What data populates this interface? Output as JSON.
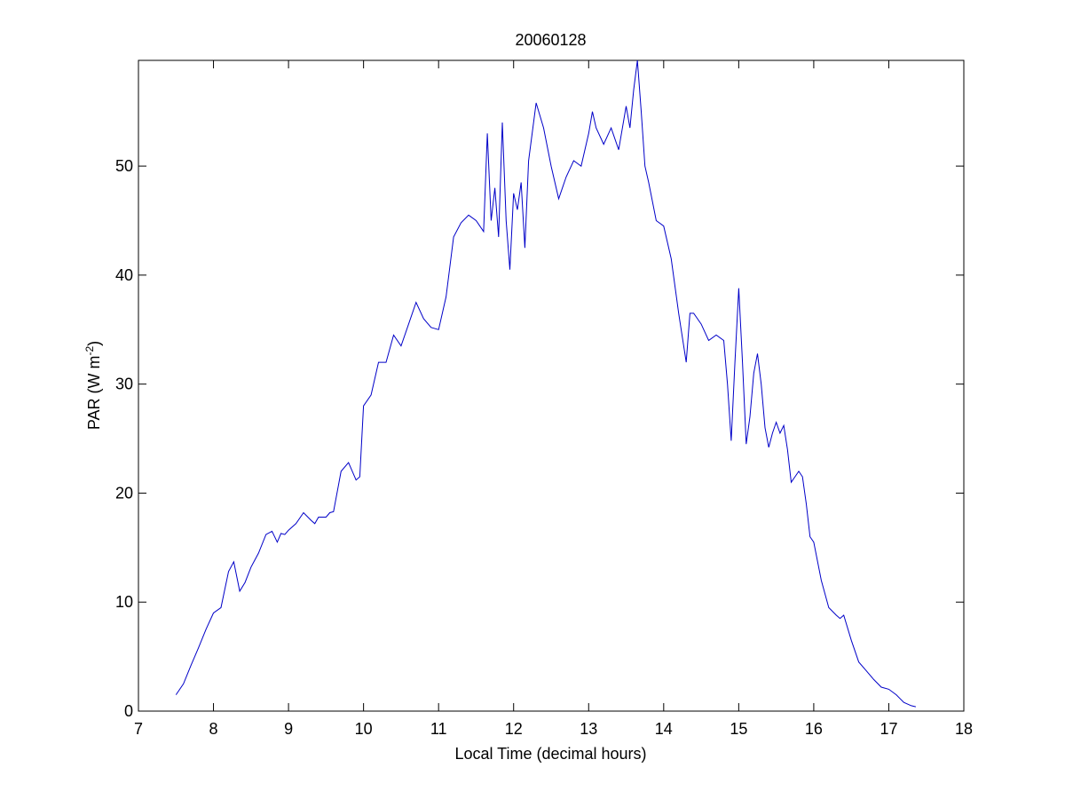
{
  "chart_data": {
    "type": "line",
    "title": "20060128",
    "xlabel": "Local Time (decimal hours)",
    "ylabel": "PAR (W m",
    "ylabel_sup": "-2",
    "ylabel_close": ")",
    "xlim": [
      7,
      18
    ],
    "ylim": [
      0,
      59.7
    ],
    "xticks": [
      7,
      8,
      9,
      10,
      11,
      12,
      13,
      14,
      15,
      16,
      17,
      18
    ],
    "yticks": [
      0,
      10,
      20,
      30,
      40,
      50
    ],
    "grid": false,
    "line_color": "#0000c8",
    "series": [
      {
        "x": [
          7.5,
          7.6,
          7.7,
          7.8,
          7.9,
          8.0,
          8.1,
          8.2,
          8.27,
          8.35,
          8.42,
          8.5,
          8.6,
          8.7,
          8.78,
          8.85,
          8.9,
          8.95,
          9.0,
          9.1,
          9.2,
          9.3,
          9.35,
          9.4,
          9.5,
          9.55,
          9.6,
          9.7,
          9.8,
          9.9,
          9.95,
          10.0,
          10.1,
          10.2,
          10.3,
          10.4,
          10.5,
          10.6,
          10.7,
          10.8,
          10.9,
          11.0,
          11.1,
          11.2,
          11.3,
          11.4,
          11.5,
          11.6,
          11.65,
          11.7,
          11.75,
          11.8,
          11.85,
          11.9,
          11.95,
          12.0,
          12.05,
          12.1,
          12.15,
          12.2,
          12.3,
          12.4,
          12.5,
          12.6,
          12.7,
          12.8,
          12.9,
          13.0,
          13.05,
          13.1,
          13.2,
          13.3,
          13.4,
          13.5,
          13.55,
          13.6,
          13.65,
          13.7,
          13.75,
          13.8,
          13.9,
          14.0,
          14.1,
          14.2,
          14.3,
          14.35,
          14.4,
          14.5,
          14.6,
          14.7,
          14.8,
          14.85,
          14.9,
          14.95,
          15.0,
          15.05,
          15.1,
          15.15,
          15.2,
          15.25,
          15.3,
          15.35,
          15.4,
          15.45,
          15.5,
          15.55,
          15.6,
          15.65,
          15.7,
          15.75,
          15.8,
          15.85,
          15.9,
          15.95,
          16.0,
          16.1,
          16.2,
          16.3,
          16.35,
          16.4,
          16.5,
          16.6,
          16.7,
          16.8,
          16.9,
          17.0,
          17.1,
          17.2,
          17.3,
          17.36
        ],
        "y": [
          1.5,
          2.5,
          4.2,
          5.8,
          7.5,
          9.0,
          9.5,
          12.8,
          13.7,
          11.0,
          11.8,
          13.2,
          14.5,
          16.2,
          16.5,
          15.5,
          16.3,
          16.2,
          16.6,
          17.2,
          18.2,
          17.5,
          17.2,
          17.8,
          17.8,
          18.2,
          18.3,
          22.0,
          22.8,
          21.2,
          21.5,
          28.0,
          29.0,
          32.0,
          32.0,
          34.5,
          33.5,
          35.5,
          37.5,
          36.0,
          35.2,
          35.0,
          38.0,
          43.5,
          44.8,
          45.5,
          45.0,
          44.0,
          53.0,
          45.0,
          48.0,
          43.5,
          54.0,
          45.0,
          40.5,
          47.5,
          46.0,
          48.5,
          42.5,
          50.5,
          55.8,
          53.5,
          50.0,
          47.0,
          49.0,
          50.5,
          50.0,
          53.0,
          55.0,
          53.5,
          52.0,
          53.5,
          51.5,
          55.5,
          53.5,
          57.0,
          59.7,
          55.0,
          50.0,
          48.5,
          45.0,
          44.5,
          41.5,
          36.5,
          32.0,
          36.5,
          36.5,
          35.5,
          34.0,
          34.5,
          34.0,
          30.0,
          24.8,
          32.0,
          38.8,
          32.0,
          24.5,
          27.0,
          31.0,
          32.8,
          30.0,
          26.0,
          24.2,
          25.5,
          26.5,
          25.5,
          26.2,
          24.0,
          21.0,
          21.5,
          22.0,
          21.5,
          19.0,
          16.0,
          15.5,
          12.0,
          9.5,
          8.8,
          8.5,
          8.8,
          6.5,
          4.5,
          3.7,
          2.9,
          2.2,
          2.0,
          1.5,
          0.8,
          0.5,
          0.4
        ]
      }
    ]
  }
}
